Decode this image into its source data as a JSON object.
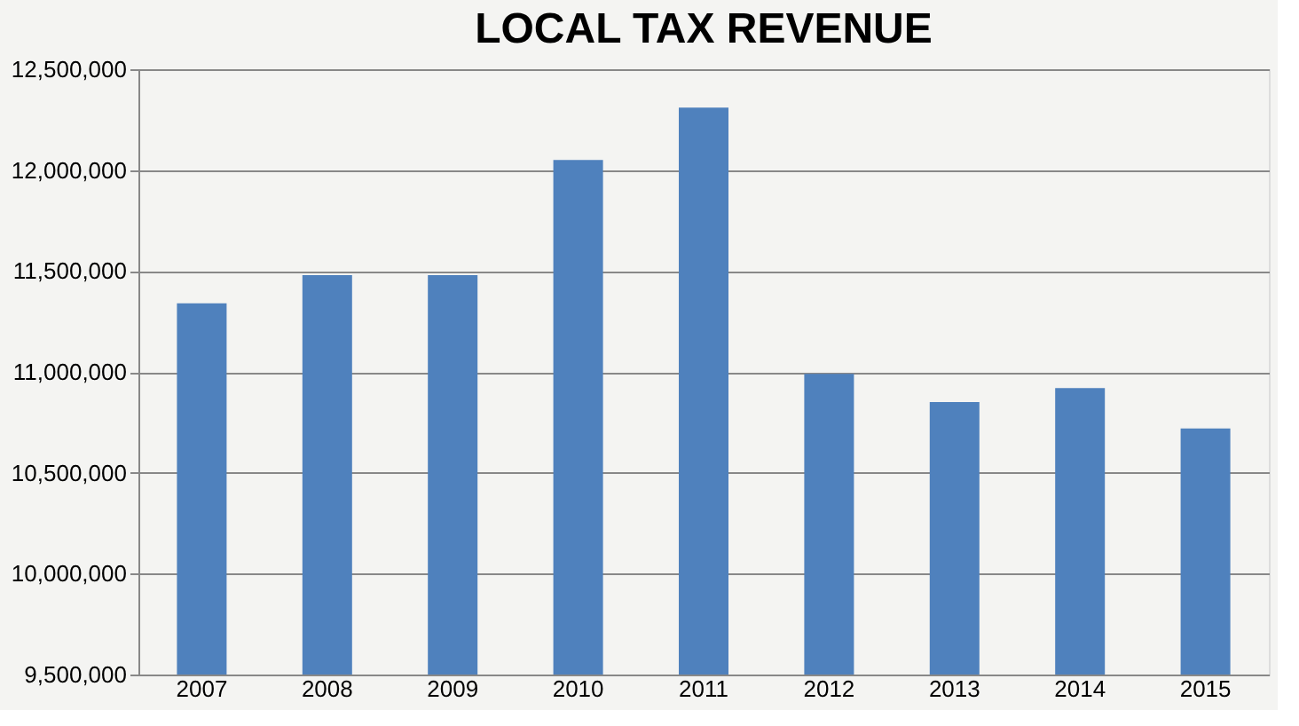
{
  "chart_data": {
    "type": "bar",
    "title": "LOCAL TAX REVENUE",
    "categories": [
      "2007",
      "2008",
      "2009",
      "2010",
      "2011",
      "2012",
      "2013",
      "2014",
      "2015"
    ],
    "values": [
      11340000,
      11480000,
      11480000,
      12050000,
      12310000,
      10990000,
      10850000,
      10920000,
      10720000
    ],
    "color": "#4f81bd",
    "ylim": [
      9500000,
      12500000
    ],
    "yticks": [
      {
        "value": 9500000,
        "label": "9,500,000"
      },
      {
        "value": 10000000,
        "label": "10,000,000"
      },
      {
        "value": 10500000,
        "label": "10,500,000"
      },
      {
        "value": 11000000,
        "label": "11,000,000"
      },
      {
        "value": 11500000,
        "label": "11,500,000"
      },
      {
        "value": 12000000,
        "label": "12,000,000"
      },
      {
        "value": 12500000,
        "label": "12,500,000"
      }
    ],
    "grid": "y",
    "legend": false
  }
}
